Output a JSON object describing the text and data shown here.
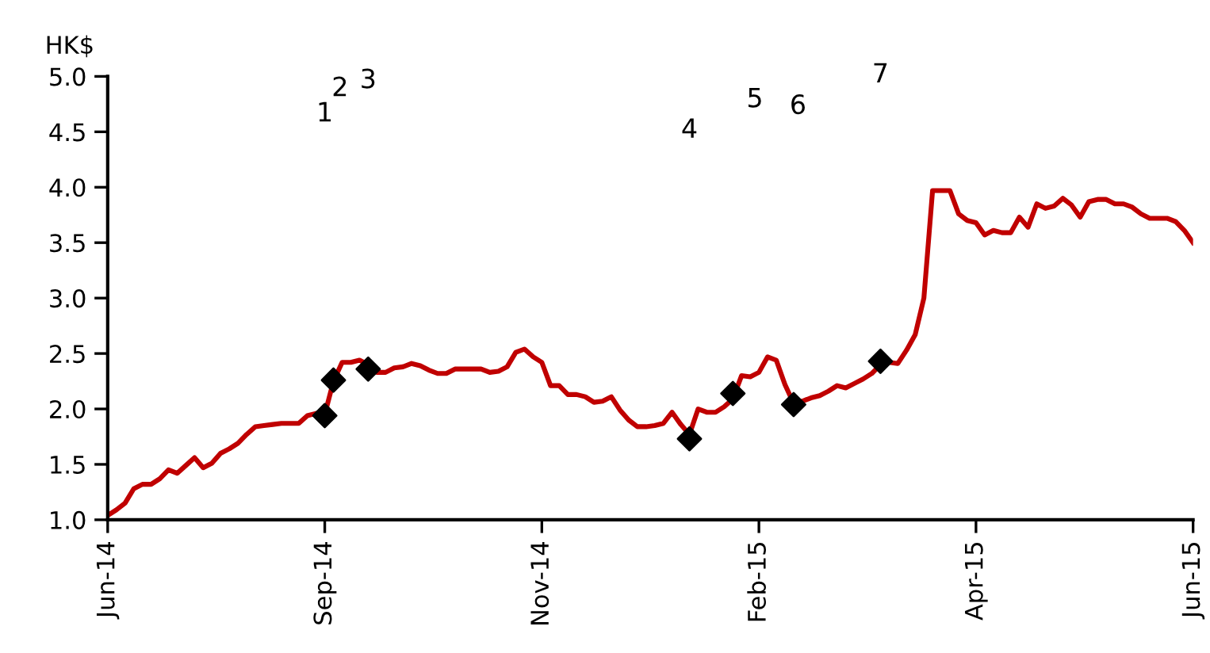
{
  "chart_data": {
    "type": "line",
    "ylabel": "HK$",
    "ylim": [
      1.0,
      5.0
    ],
    "categories": [
      "Jun-14",
      null,
      null,
      null,
      null,
      null,
      null,
      null,
      null,
      null,
      null,
      null,
      null,
      null,
      null,
      null,
      null,
      null,
      null,
      null,
      null,
      null,
      null,
      null,
      null,
      "Sep-14",
      null,
      null,
      null,
      null,
      null,
      null,
      null,
      null,
      null,
      null,
      null,
      null,
      null,
      null,
      null,
      null,
      null,
      null,
      null,
      null,
      null,
      null,
      null,
      null,
      "Nov-14",
      null,
      null,
      null,
      null,
      null,
      null,
      null,
      null,
      null,
      null,
      null,
      null,
      null,
      null,
      null,
      null,
      null,
      null,
      null,
      null,
      null,
      null,
      null,
      null,
      "Feb-15",
      null,
      null,
      null,
      null,
      null,
      null,
      null,
      null,
      null,
      null,
      null,
      null,
      null,
      null,
      null,
      null,
      null,
      null,
      null,
      null,
      null,
      null,
      null,
      null,
      "Apr-15",
      null,
      null,
      null,
      null,
      null,
      null,
      null,
      null,
      null,
      null,
      null,
      null,
      null,
      null,
      null,
      null,
      null,
      null,
      null,
      null,
      null,
      null,
      null,
      null,
      "Jun-15"
    ],
    "yticks": [
      {
        "value": 1.0,
        "label": "1.0"
      },
      {
        "value": 1.5,
        "label": "1.5"
      },
      {
        "value": 2.0,
        "label": "2.0"
      },
      {
        "value": 2.5,
        "label": "2.5"
      },
      {
        "value": 3.0,
        "label": "3.0"
      },
      {
        "value": 3.5,
        "label": "3.5"
      },
      {
        "value": 4.0,
        "label": "4.0"
      },
      {
        "value": 4.5,
        "label": "4.5"
      },
      {
        "value": 5.0,
        "label": "5.0"
      }
    ],
    "series": [
      {
        "color": "#c00000",
        "values": [
          1.04,
          1.09,
          1.15,
          1.28,
          1.32,
          1.32,
          1.37,
          1.45,
          1.42,
          1.49,
          1.56,
          1.47,
          1.51,
          1.6,
          1.64,
          1.69,
          1.77,
          1.84,
          1.85,
          1.86,
          1.87,
          1.87,
          1.87,
          1.94,
          1.96,
          1.95,
          2.25,
          2.42,
          2.42,
          2.44,
          2.4,
          2.33,
          2.33,
          2.37,
          2.38,
          2.41,
          2.39,
          2.35,
          2.32,
          2.32,
          2.36,
          2.36,
          2.36,
          2.36,
          2.33,
          2.34,
          2.38,
          2.51,
          2.54,
          2.47,
          2.42,
          2.21,
          2.21,
          2.13,
          2.13,
          2.11,
          2.06,
          2.07,
          2.11,
          1.99,
          1.9,
          1.84,
          1.84,
          1.85,
          1.87,
          1.97,
          1.86,
          1.77,
          2.0,
          1.97,
          1.97,
          2.02,
          2.09,
          2.3,
          2.29,
          2.33,
          2.47,
          2.44,
          2.22,
          2.05,
          2.07,
          2.1,
          2.12,
          2.16,
          2.21,
          2.19,
          2.23,
          2.27,
          2.32,
          2.4,
          2.42,
          2.41,
          2.53,
          2.67,
          3.0,
          3.97,
          3.97,
          3.97,
          3.76,
          3.7,
          3.68,
          3.57,
          3.61,
          3.59,
          3.59,
          3.73,
          3.64,
          3.85,
          3.81,
          3.83,
          3.9,
          3.84,
          3.73,
          3.87,
          3.89,
          3.89,
          3.85,
          3.85,
          3.82,
          3.76,
          3.72,
          3.72,
          3.72,
          3.69,
          3.61,
          3.5
        ]
      },
      {
        "type": "scatter",
        "color": "#000000",
        "marker": "diamond",
        "values": [
          null,
          null,
          null,
          null,
          null,
          null,
          null,
          null,
          null,
          null,
          null,
          null,
          null,
          null,
          null,
          null,
          null,
          null,
          null,
          null,
          null,
          null,
          null,
          null,
          null,
          1.94,
          2.26,
          null,
          null,
          null,
          2.36,
          null,
          null,
          null,
          null,
          null,
          null,
          null,
          null,
          null,
          null,
          null,
          null,
          null,
          null,
          null,
          null,
          null,
          null,
          null,
          null,
          null,
          null,
          null,
          null,
          null,
          null,
          null,
          null,
          null,
          null,
          null,
          null,
          null,
          null,
          null,
          null,
          1.73,
          null,
          null,
          null,
          null,
          2.14,
          null,
          null,
          null,
          null,
          null,
          null,
          2.04,
          null,
          null,
          null,
          null,
          null,
          null,
          null,
          null,
          null,
          2.43,
          null,
          null,
          null,
          null,
          null,
          null,
          null,
          null,
          null,
          null,
          null,
          null,
          null,
          null,
          null,
          null,
          null,
          null,
          null,
          null,
          null,
          null,
          null,
          null,
          null,
          null,
          null,
          null,
          null,
          null,
          null,
          null,
          null,
          null,
          null,
          null
        ]
      }
    ],
    "annotations": [
      "1",
      "2",
      "3",
      "4",
      "5",
      "6",
      "7"
    ]
  }
}
